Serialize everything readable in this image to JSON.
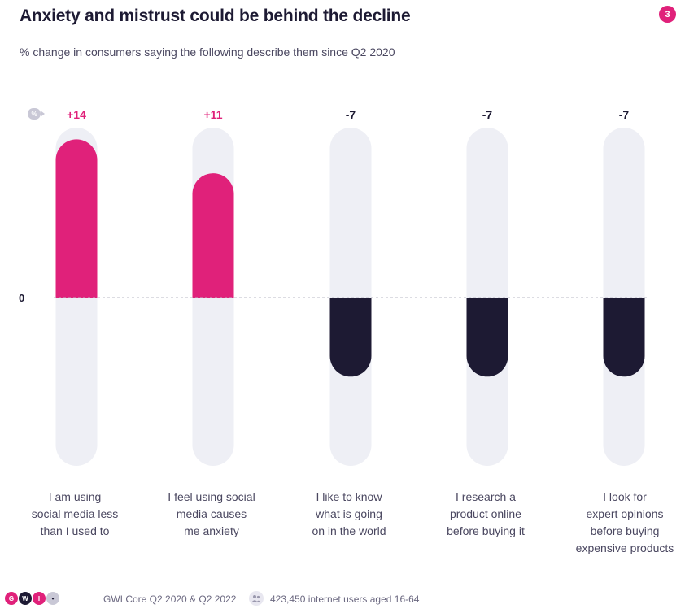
{
  "header": {
    "title": "Anxiety and mistrust could be behind the decline",
    "slide_number": "3",
    "subtitle": "% change in consumers saying the following describe them since Q2 2020"
  },
  "colors": {
    "positive": "#e0217a",
    "negative": "#1d1a33",
    "track": "#eeeff5",
    "zero_line": "#b9b8c6",
    "label_text": "#4a4760"
  },
  "chart_data": {
    "type": "bar",
    "unit_icon": "%",
    "zero_label": "0",
    "ylim": [
      -15,
      15
    ],
    "categories": [
      [
        "I am using",
        "social media less",
        "than I used to"
      ],
      [
        "I feel using social",
        "media causes",
        "me anxiety"
      ],
      [
        "I like to know",
        "what is going",
        "on in the world"
      ],
      [
        "I research a",
        "product online",
        "before buying it"
      ],
      [
        "I look for",
        "expert opinions",
        "before buying",
        "expensive products"
      ]
    ],
    "values": [
      14,
      11,
      -7,
      -7,
      -7
    ],
    "value_labels": [
      "+14",
      "+11",
      "-7",
      "-7",
      "-7"
    ]
  },
  "footer": {
    "logo_letters": [
      "G",
      "W",
      "I",
      "•"
    ],
    "source": "GWI Core Q2 2020 & Q2 2022",
    "sample": "423,450 internet users aged 16-64"
  }
}
